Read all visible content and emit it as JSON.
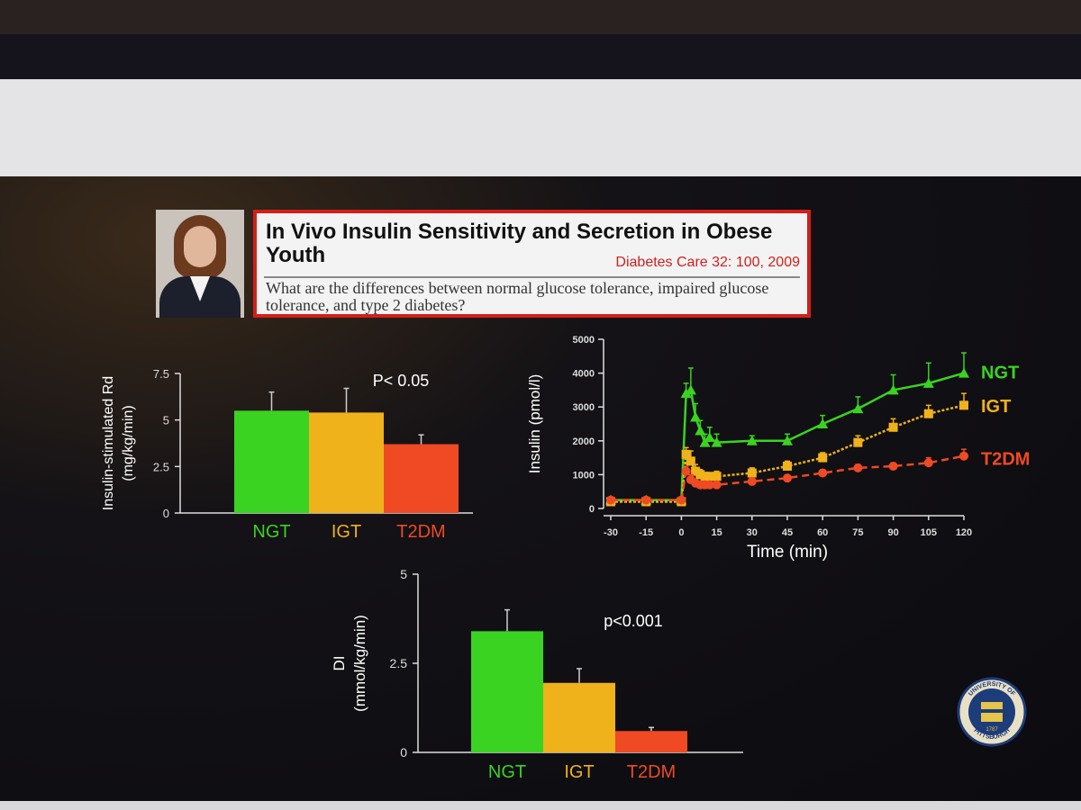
{
  "header": {
    "title": "In Vivo Insulin Sensitivity and Secretion in Obese Youth",
    "citation": "Diabetes Care 32: 100, 2009",
    "question": "What are the differences between normal glucose tolerance, impaired glucose tolerance, and type 2 diabetes?"
  },
  "colors": {
    "NGT": "#3ad321",
    "IGT": "#f0b21a",
    "T2DM": "#ef4a24",
    "axis": "#dddddd",
    "label": "#ffffff"
  },
  "chart_data": [
    {
      "type": "bar",
      "ylabel": "Insulin-stimulated Rd\n(mg/kg/min)",
      "categories": [
        "NGT",
        "IGT",
        "T2DM"
      ],
      "values": [
        5.5,
        5.4,
        3.7
      ],
      "errors": [
        1.0,
        1.3,
        0.5
      ],
      "yticks": [
        "0",
        "2.5",
        "5",
        "7.5"
      ],
      "ylim": [
        0,
        7.5
      ],
      "annotation": "P< 0.05"
    },
    {
      "type": "line",
      "xlabel": "Time (min)",
      "ylabel": "Insulin (pmol/l)",
      "xticks": [
        "-30",
        "-15",
        "0",
        "15",
        "30",
        "45",
        "60",
        "75",
        "90",
        "105",
        "120"
      ],
      "yticks": [
        "0",
        "1000",
        "2000",
        "3000",
        "4000",
        "5000"
      ],
      "xlim": [
        -30,
        120
      ],
      "ylim": [
        0,
        5000
      ],
      "series": [
        {
          "name": "NGT",
          "x": [
            -30,
            -15,
            0,
            2,
            4,
            6,
            8,
            10,
            12,
            15,
            30,
            45,
            60,
            75,
            90,
            105,
            120
          ],
          "y": [
            250,
            250,
            250,
            3400,
            3500,
            2700,
            2300,
            1950,
            2100,
            1950,
            2000,
            2000,
            2500,
            2950,
            3500,
            3700,
            4000
          ],
          "err": [
            80,
            80,
            80,
            300,
            650,
            400,
            300,
            250,
            300,
            250,
            150,
            200,
            250,
            350,
            450,
            600,
            600
          ]
        },
        {
          "name": "IGT",
          "x": [
            -30,
            -15,
            0,
            2,
            4,
            6,
            8,
            10,
            12,
            15,
            30,
            45,
            60,
            75,
            90,
            105,
            120
          ],
          "y": [
            200,
            200,
            200,
            1600,
            1400,
            1100,
            1000,
            950,
            950,
            950,
            1050,
            1250,
            1500,
            1950,
            2400,
            2800,
            3050
          ],
          "err": [
            60,
            60,
            60,
            200,
            300,
            200,
            150,
            100,
            100,
            150,
            150,
            150,
            150,
            200,
            250,
            250,
            350
          ]
        },
        {
          "name": "T2DM",
          "x": [
            -30,
            -15,
            0,
            2,
            4,
            6,
            8,
            10,
            12,
            15,
            30,
            45,
            60,
            75,
            90,
            105,
            120
          ],
          "y": [
            250,
            250,
            250,
            1100,
            850,
            750,
            700,
            700,
            700,
            700,
            800,
            900,
            1050,
            1200,
            1250,
            1350,
            1550
          ],
          "err": [
            60,
            60,
            60,
            150,
            150,
            100,
            80,
            80,
            80,
            80,
            80,
            80,
            100,
            100,
            100,
            150,
            200
          ]
        }
      ]
    },
    {
      "type": "bar",
      "ylabel": "DI\n(mmol/kg/min)",
      "categories": [
        "NGT",
        "IGT",
        "T2DM"
      ],
      "values": [
        3.4,
        1.95,
        0.6
      ],
      "errors": [
        0.6,
        0.4,
        0.1
      ],
      "yticks": [
        "0",
        "2.5",
        "5"
      ],
      "ylim": [
        0,
        5
      ],
      "annotation": "p<0.001"
    }
  ],
  "logo": {
    "text_top": "UNIVERSITY OF",
    "text_bottom": "PITTSBURGH",
    "year": "1787"
  }
}
